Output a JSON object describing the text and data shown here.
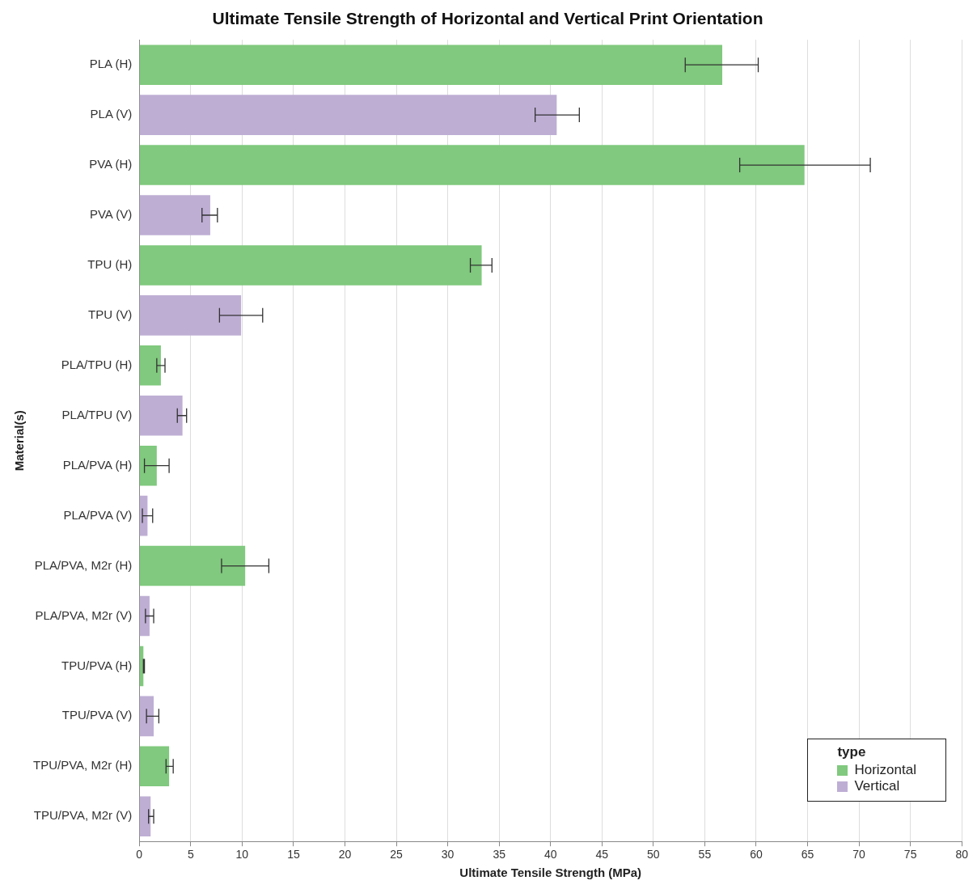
{
  "chart_data": {
    "type": "bar",
    "orientation": "horizontal",
    "title": "Ultimate Tensile Strength of Horizontal and Vertical Print Orientation",
    "xlabel": "Ultimate Tensile Strength (MPa)",
    "ylabel": "Material(s)",
    "legend_title": "type",
    "categories": [
      "PLA (H)",
      "PLA (V)",
      "PVA (H)",
      "PVA (V)",
      "TPU (H)",
      "TPU (V)",
      "PLA/TPU (H)",
      "PLA/TPU (V)",
      "PLA/PVA (H)",
      "PLA/PVA (V)",
      "PLA/PVA, M2r (H)",
      "PLA/PVA, M2r (V)",
      "TPU/PVA (H)",
      "TPU/PVA (V)",
      "TPU/PVA, M2r (H)",
      "TPU/PVA, M2r (V)"
    ],
    "series": [
      {
        "name": "Horizontal",
        "color": "#80c97e",
        "values": [
          56.7,
          null,
          64.7,
          null,
          33.3,
          null,
          2.1,
          null,
          1.7,
          null,
          10.3,
          null,
          0.4,
          null,
          2.9,
          null
        ],
        "errors": [
          [
            53.1,
            60.2
          ],
          null,
          [
            58.4,
            71.1
          ],
          null,
          [
            32.2,
            34.3
          ],
          null,
          [
            1.7,
            2.5
          ],
          null,
          [
            0.5,
            2.9
          ],
          null,
          [
            8.0,
            12.6
          ],
          null,
          [
            0.4,
            0.5
          ],
          null,
          [
            2.6,
            3.3
          ],
          null
        ]
      },
      {
        "name": "Vertical",
        "color": "#beaed4",
        "values": [
          null,
          40.6,
          null,
          6.9,
          null,
          9.9,
          null,
          4.2,
          null,
          0.8,
          null,
          1.0,
          null,
          1.4,
          null,
          1.1
        ],
        "errors": [
          null,
          [
            38.5,
            42.8
          ],
          null,
          [
            6.1,
            7.6
          ],
          null,
          [
            7.8,
            12.0
          ],
          null,
          [
            3.7,
            4.6
          ],
          null,
          [
            0.3,
            1.3
          ],
          null,
          [
            0.6,
            1.4
          ],
          null,
          [
            0.7,
            1.9
          ],
          null,
          [
            0.9,
            1.4
          ]
        ]
      }
    ],
    "xlim": [
      0,
      80
    ],
    "xticks": [
      0,
      5,
      10,
      15,
      20,
      25,
      30,
      35,
      40,
      45,
      50,
      55,
      60,
      65,
      70,
      75,
      80
    ],
    "grid": "x",
    "legend": "bottom right"
  }
}
